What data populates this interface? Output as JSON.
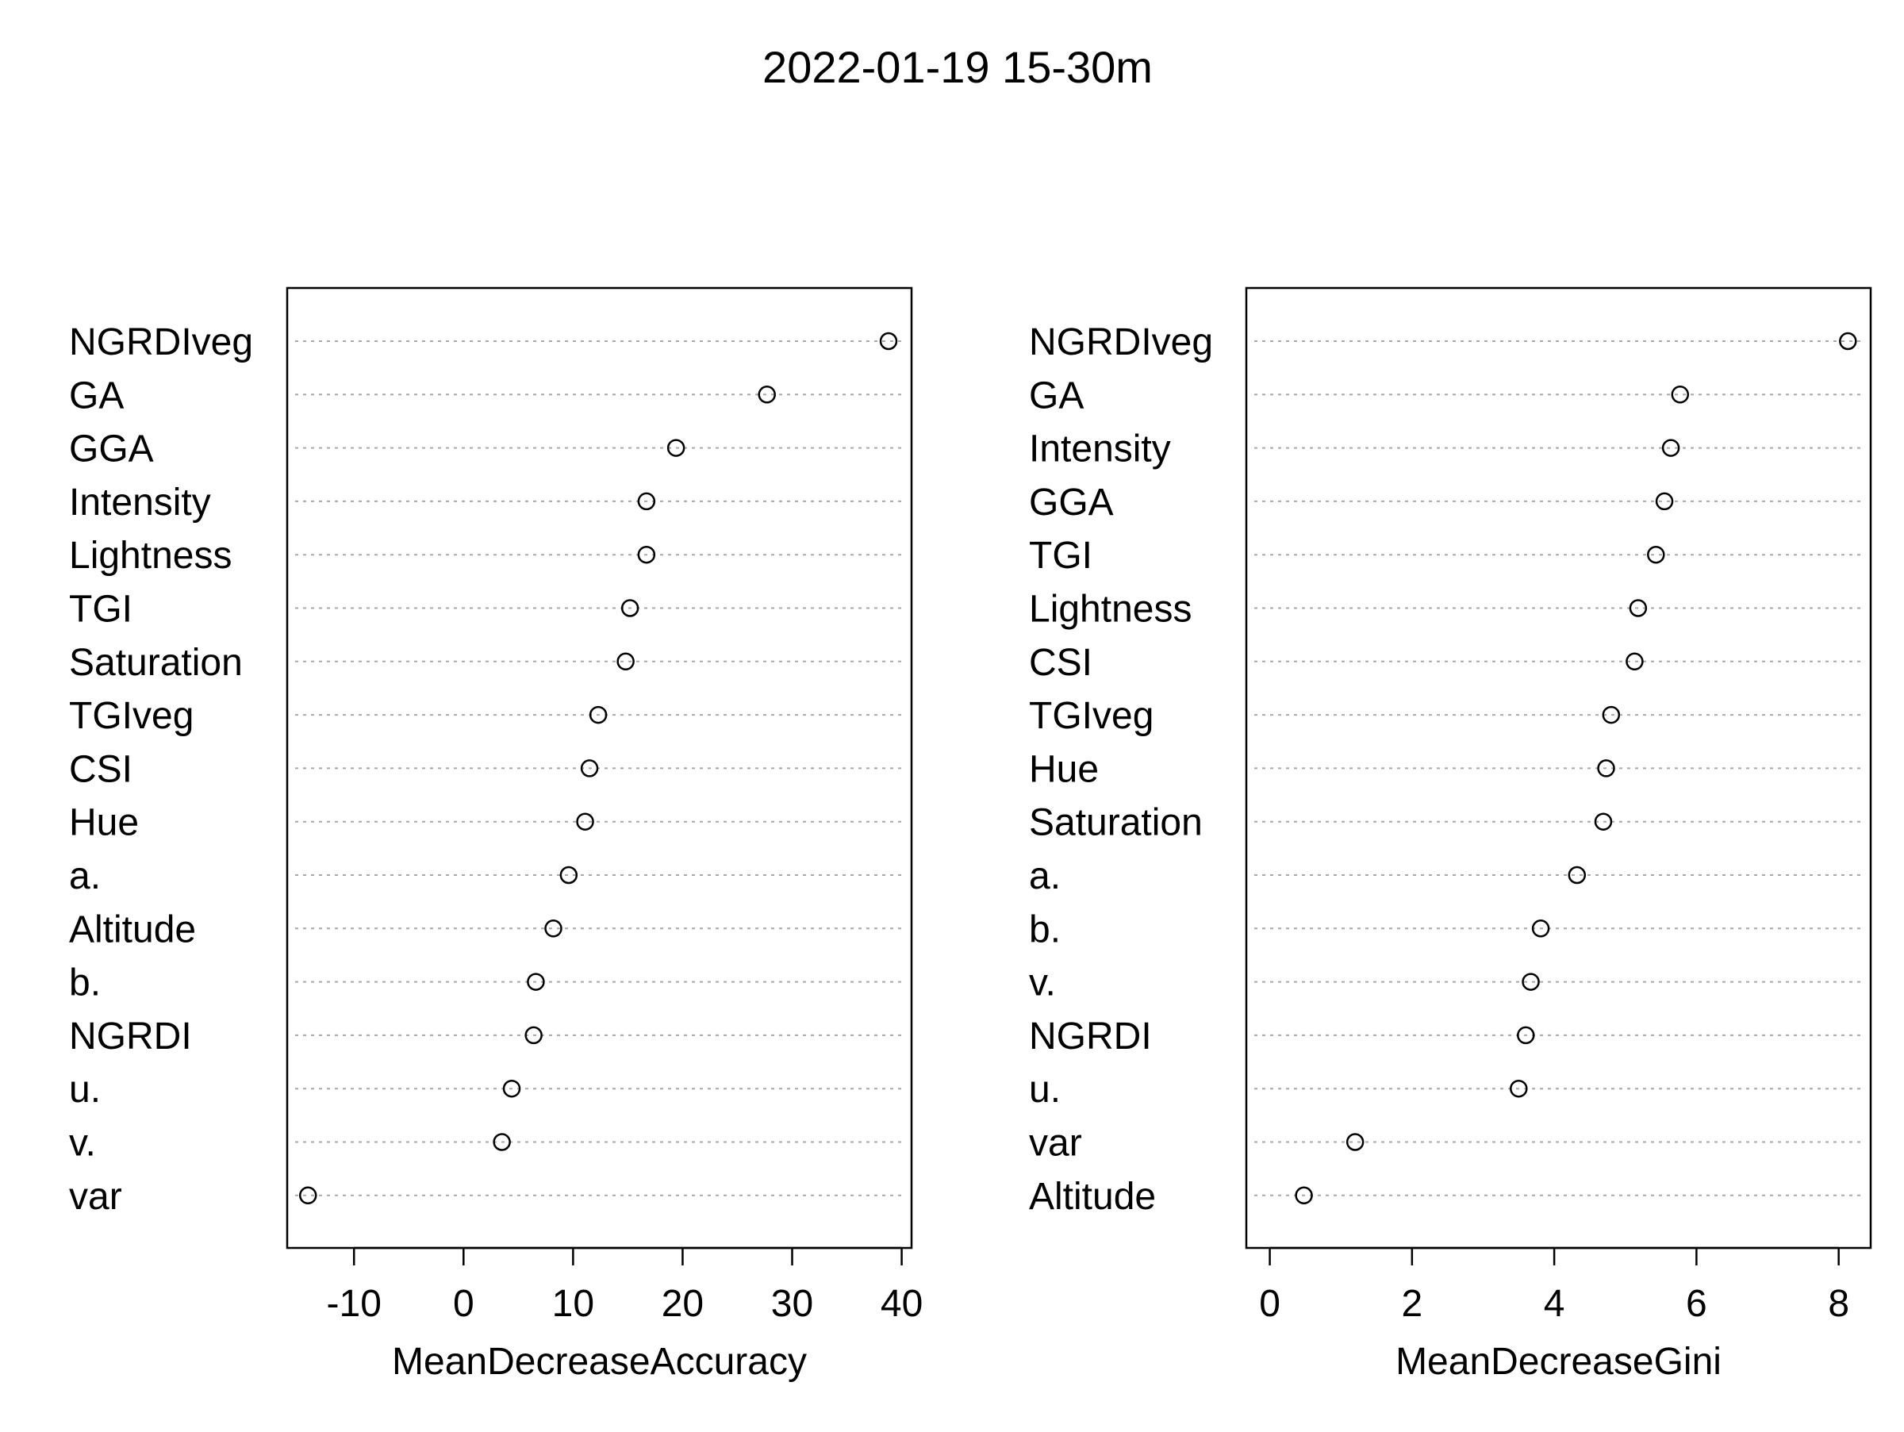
{
  "title": "2022-01-19 15-30m",
  "chart_data": [
    {
      "type": "scatter",
      "style": "dotchart",
      "xlabel": "MeanDecreaseAccuracy",
      "ylabel": "",
      "xlim": [
        -16.1,
        40.9
      ],
      "xticks": [
        -10,
        0,
        10,
        20,
        30,
        40
      ],
      "grid": "horizontal dotted",
      "legend": "none",
      "categories": [
        "NGRDIveg",
        "GA",
        "GGA",
        "Intensity",
        "Lightness",
        "TGI",
        "Saturation",
        "TGIveg",
        "CSI",
        "Hue",
        "a.",
        "Altitude",
        "b.",
        "NGRDI",
        "u.",
        "v.",
        "var"
      ],
      "values": [
        38.8,
        27.7,
        19.4,
        16.7,
        16.7,
        15.2,
        14.8,
        12.3,
        11.5,
        11.1,
        9.6,
        8.2,
        6.6,
        6.4,
        4.4,
        3.5,
        -14.2
      ]
    },
    {
      "type": "scatter",
      "style": "dotchart",
      "xlabel": "MeanDecreaseGini",
      "ylabel": "",
      "xlim": [
        -0.33,
        8.45
      ],
      "xticks": [
        0,
        2,
        4,
        6,
        8
      ],
      "grid": "horizontal dotted",
      "legend": "none",
      "categories": [
        "NGRDIveg",
        "GA",
        "Intensity",
        "GGA",
        "TGI",
        "Lightness",
        "CSI",
        "TGIveg",
        "Hue",
        "Saturation",
        "a.",
        "b.",
        "v.",
        "NGRDI",
        "u.",
        "var",
        "Altitude"
      ],
      "values": [
        8.13,
        5.77,
        5.64,
        5.55,
        5.43,
        5.18,
        5.13,
        4.8,
        4.73,
        4.69,
        4.32,
        3.81,
        3.67,
        3.6,
        3.5,
        1.2,
        0.48
      ]
    }
  ]
}
